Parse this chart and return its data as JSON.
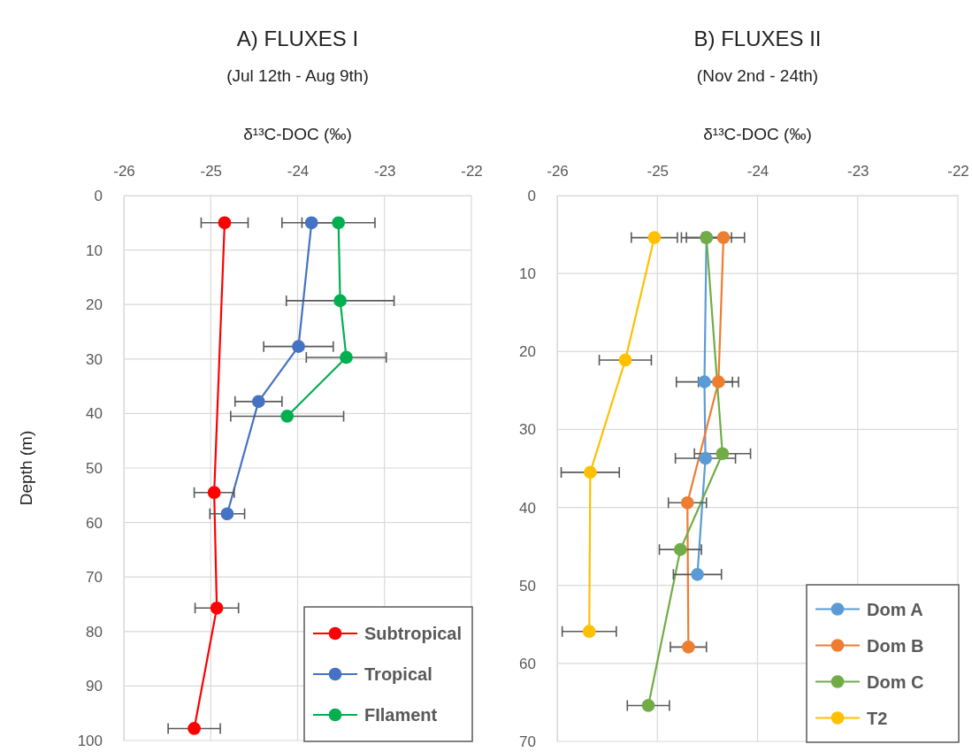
{
  "chart_data": [
    {
      "type": "line",
      "title": "A) FLUXES I",
      "subtitle": "(Jul 12th - Aug 9th)",
      "xlabel": "δ¹³C-DOC (‰)",
      "ylabel": "Depth (m)",
      "xlim": [
        -26,
        -22
      ],
      "xticks": [
        -26,
        -25,
        -24,
        -23,
        -22
      ],
      "ylim": [
        100,
        0
      ],
      "yticks": [
        0,
        10,
        20,
        30,
        40,
        50,
        60,
        70,
        80,
        90,
        100
      ],
      "grid": true,
      "legend": "bottom right",
      "marker": "circle",
      "line_style": "solid",
      "series": [
        {
          "name": "Subtropical",
          "color": "#ff0000",
          "x": [
            -24.84,
            -24.96,
            -24.93,
            -25.19
          ],
          "values": [
            5,
            54.5,
            75.7,
            97.8
          ],
          "xerrors": [
            0.27,
            0.23,
            0.25,
            0.3
          ]
        },
        {
          "name": "Tropical",
          "color": "#4472c4",
          "x": [
            -23.84,
            -23.99,
            -24.45,
            -24.81
          ],
          "values": [
            5,
            27.7,
            37.8,
            58.4
          ],
          "xerrors": [
            0.34,
            0.4,
            0.27,
            0.2
          ]
        },
        {
          "name": "FIlament",
          "color": "#00b050",
          "x": [
            -23.53,
            -23.51,
            -23.44,
            -24.12
          ],
          "values": [
            5,
            19.3,
            29.7,
            40.5
          ],
          "xerrors": [
            0.42,
            0.62,
            0.46,
            0.65
          ]
        }
      ]
    },
    {
      "type": "line",
      "title": "B) FLUXES II",
      "subtitle": "(Nov 2nd - 24th)",
      "xlabel": "δ¹³C-DOC (‰)",
      "xlim": [
        -26,
        -22
      ],
      "xticks": [
        -26,
        -25,
        -24,
        -23,
        -22
      ],
      "ylim": [
        70,
        0
      ],
      "yticks": [
        0,
        10,
        20,
        30,
        40,
        50,
        60,
        70
      ],
      "grid": true,
      "legend": "bottom right",
      "marker": "circle",
      "line_style": "solid",
      "series": [
        {
          "name": "Dom A",
          "color": "#5b9bd5",
          "x": [
            -24.51,
            -24.53,
            -24.52,
            -24.6
          ],
          "values": [
            5.4,
            23.9,
            33.7,
            48.6
          ],
          "xerrors": [
            0.2,
            0.28,
            0.3,
            0.24
          ]
        },
        {
          "name": "Dom B",
          "color": "#ed7d31",
          "x": [
            -24.34,
            -24.39,
            -24.7,
            -24.69
          ],
          "values": [
            5.4,
            23.9,
            39.4,
            57.9
          ],
          "xerrors": [
            0.21,
            0.2,
            0.19,
            0.18
          ]
        },
        {
          "name": "Dom C",
          "color": "#70ad47",
          "x": [
            -24.51,
            -24.35,
            -24.77,
            -25.09
          ],
          "values": [
            5.4,
            33.1,
            45.4,
            65.4
          ],
          "xerrors": [
            0.25,
            0.28,
            0.21,
            0.21
          ]
        },
        {
          "name": "T2",
          "color": "#ffc000",
          "x": [
            -25.03,
            -25.32,
            -25.67,
            -25.68
          ],
          "values": [
            5.4,
            21.1,
            35.5,
            55.9
          ],
          "xerrors": [
            0.23,
            0.26,
            0.29,
            0.27
          ]
        }
      ]
    }
  ]
}
